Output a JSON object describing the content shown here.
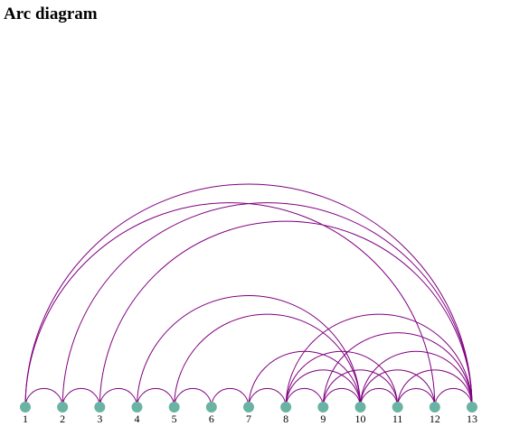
{
  "title": "Arc diagram",
  "colors": {
    "link": "#800080",
    "node": "#69b3a2"
  },
  "chart_data": {
    "type": "arc",
    "nodes": [
      "1",
      "2",
      "3",
      "4",
      "5",
      "6",
      "7",
      "8",
      "9",
      "10",
      "11",
      "12",
      "13"
    ],
    "links": [
      [
        "1",
        "2"
      ],
      [
        "2",
        "3"
      ],
      [
        "3",
        "4"
      ],
      [
        "4",
        "5"
      ],
      [
        "5",
        "6"
      ],
      [
        "6",
        "7"
      ],
      [
        "7",
        "8"
      ],
      [
        "8",
        "9"
      ],
      [
        "9",
        "10"
      ],
      [
        "10",
        "11"
      ],
      [
        "11",
        "12"
      ],
      [
        "12",
        "13"
      ],
      [
        "1",
        "12"
      ],
      [
        "1",
        "13"
      ],
      [
        "2",
        "13"
      ],
      [
        "3",
        "13"
      ],
      [
        "4",
        "10"
      ],
      [
        "5",
        "10"
      ],
      [
        "7",
        "10"
      ],
      [
        "8",
        "10"
      ],
      [
        "8",
        "11"
      ],
      [
        "8",
        "13"
      ],
      [
        "9",
        "11"
      ],
      [
        "9",
        "13"
      ],
      [
        "10",
        "12"
      ],
      [
        "10",
        "13"
      ],
      [
        "11",
        "13"
      ]
    ]
  }
}
